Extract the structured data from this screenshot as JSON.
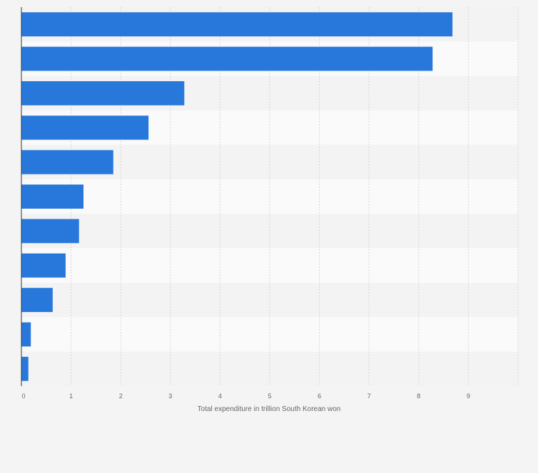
{
  "chart_data": {
    "type": "bar",
    "orientation": "horizontal",
    "categories": [
      "",
      "",
      "",
      "",
      "",
      "",
      "",
      "",
      "",
      "",
      ""
    ],
    "values": [
      8.68,
      8.28,
      3.28,
      2.56,
      1.85,
      1.25,
      1.16,
      0.89,
      0.63,
      0.19,
      0.14
    ],
    "title": "",
    "xlabel": "Total expenditure in trillion South Korean won",
    "ylabel": "",
    "xlim": [
      0,
      10
    ],
    "xticks": [
      0,
      1,
      2,
      3,
      4,
      5,
      6,
      7,
      8,
      9
    ],
    "xtick_labels": [
      "0",
      "1",
      "2",
      "3",
      "4",
      "5",
      "6",
      "7",
      "8",
      "9"
    ],
    "grid": true,
    "legend": "none",
    "bar_color": "#2878dc",
    "band_colors": [
      "#f3f3f3",
      "#fafafa"
    ],
    "grid_color": "#d6d6d6",
    "axis_color": "#333333",
    "label_color": "#666666"
  }
}
